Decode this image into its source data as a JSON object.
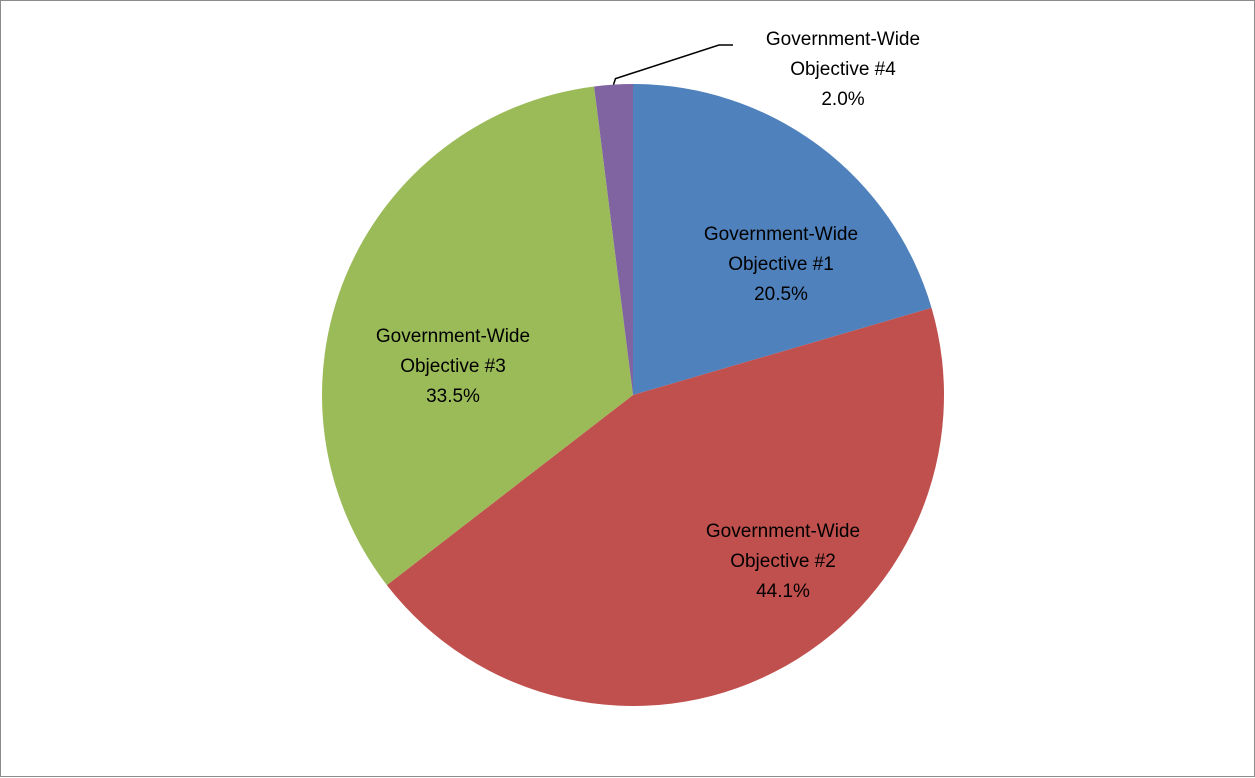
{
  "chart_data": {
    "type": "pie",
    "title": "",
    "slices": [
      {
        "name": "Government-Wide Objective #1",
        "value": 20.5,
        "label": "20.5%",
        "color": "#4f81bd"
      },
      {
        "name": "Government-Wide Objective #2",
        "value": 44.1,
        "label": "44.1%",
        "color": "#c0504d"
      },
      {
        "name": "Government-Wide Objective #3",
        "value": 33.5,
        "label": "33.5%",
        "color": "#9bbb59"
      },
      {
        "name": "Government-Wide Objective #4",
        "value": 2.0,
        "label": "2.0%",
        "color": "#8064a2"
      }
    ],
    "start_angle": "12 o'clock",
    "direction": "clockwise",
    "legend": "none"
  }
}
